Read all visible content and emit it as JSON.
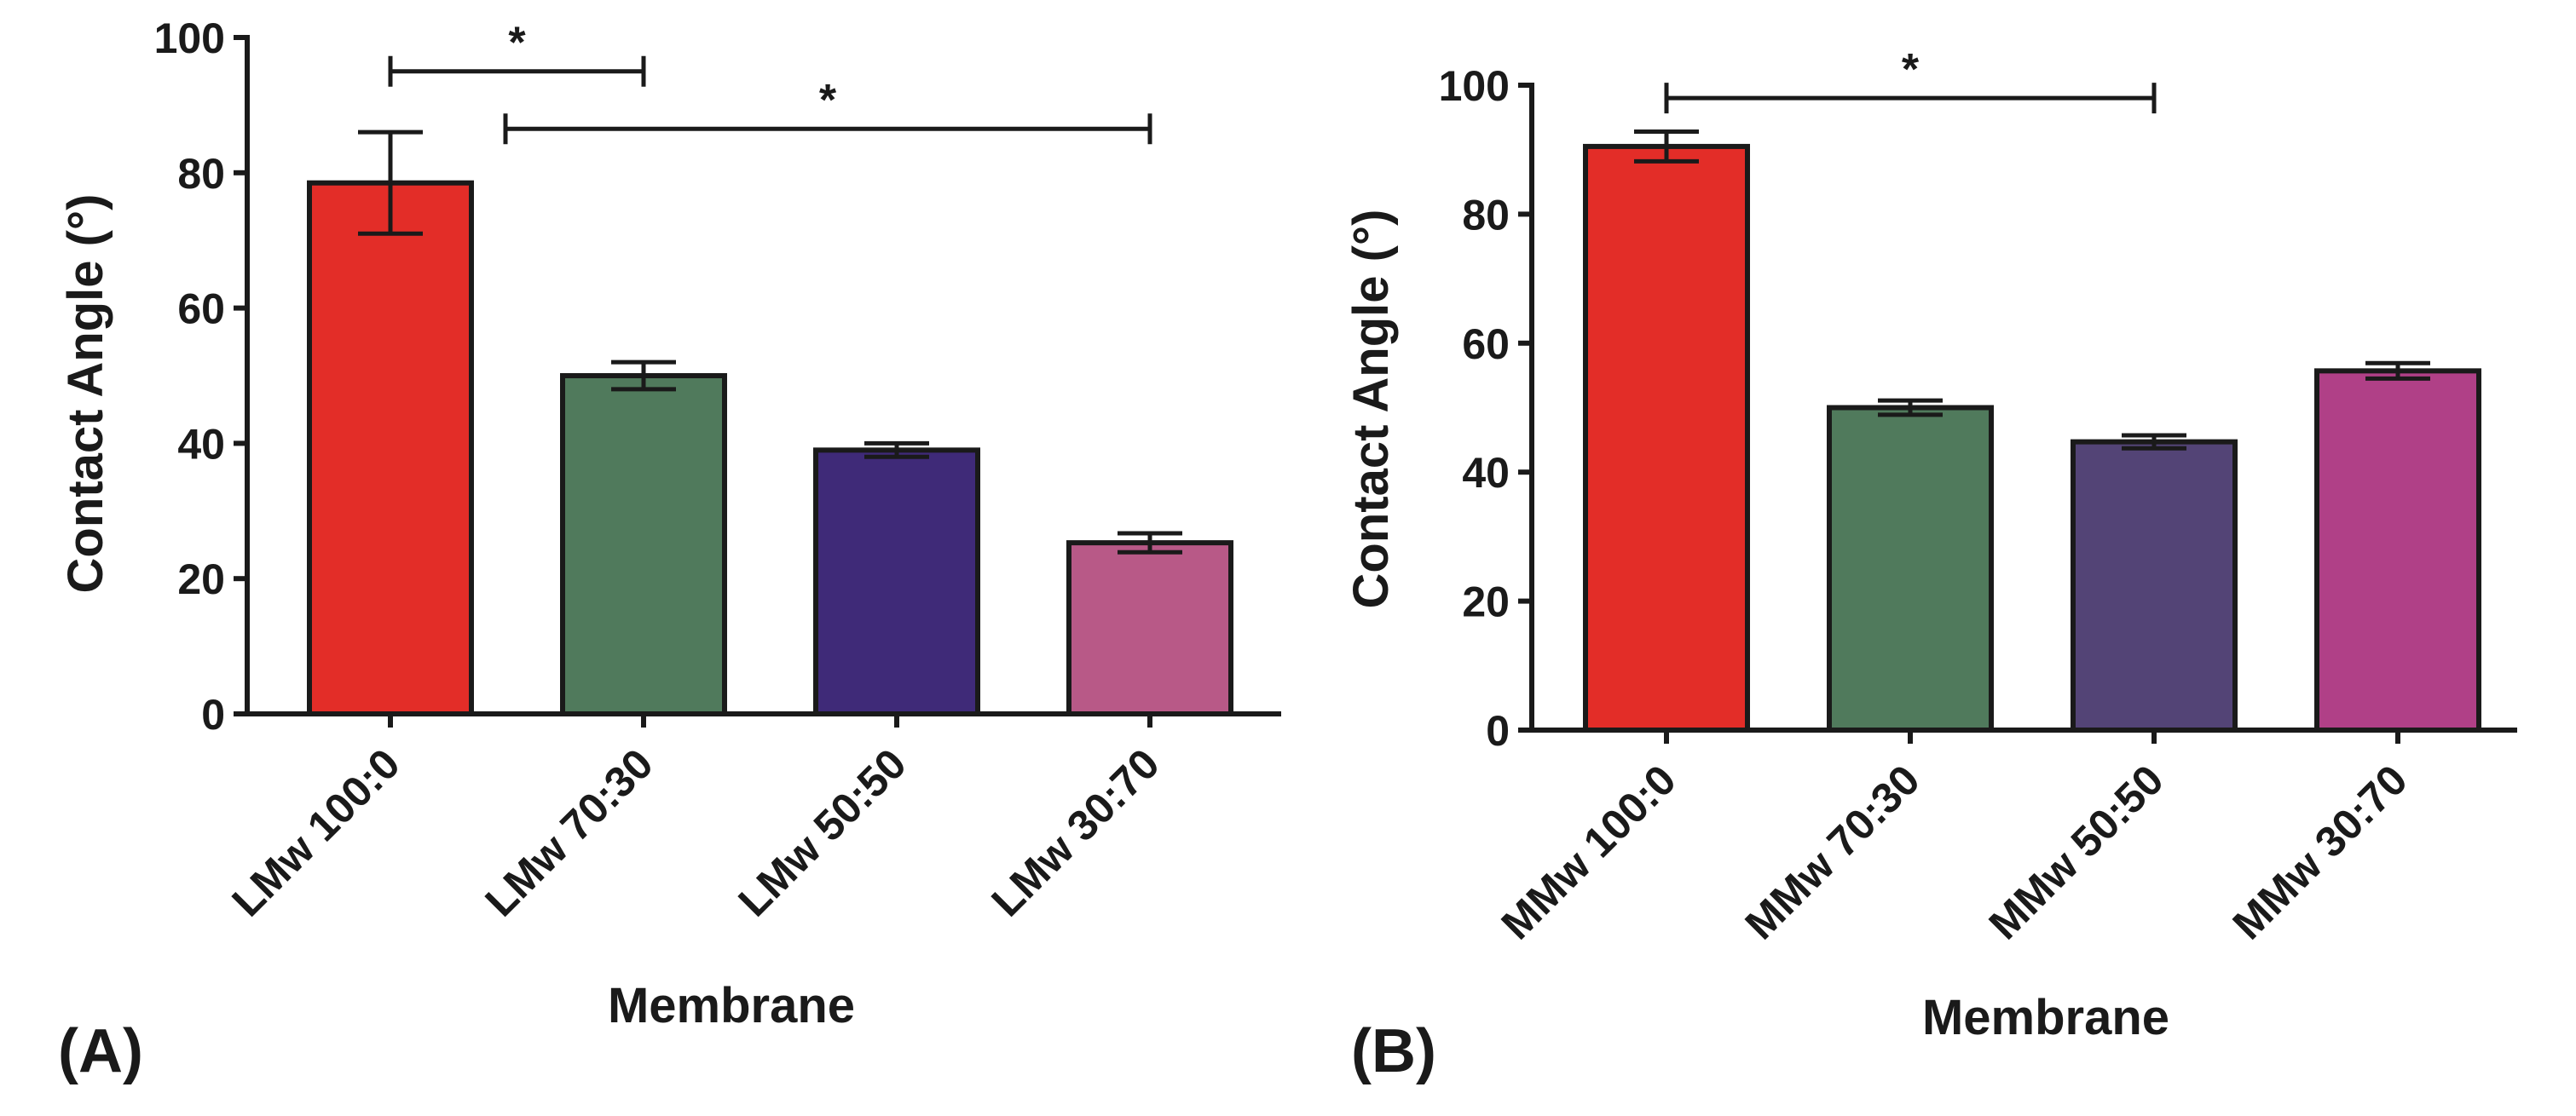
{
  "chart_data": [
    {
      "panel": "(A)",
      "type": "bar",
      "categories": [
        "LMw 100:0",
        "LMw 70:30",
        "LMw 50:50",
        "LMw 30:70"
      ],
      "values": [
        78.5,
        50,
        39,
        25.3
      ],
      "errors": [
        7.5,
        2,
        1,
        1.4
      ],
      "colors": [
        "#e32d28",
        "#507a5c",
        "#3f2a78",
        "#b85987"
      ],
      "xlabel": "Membrane",
      "ylabel": "Contact Angle (°)",
      "ylim": [
        0,
        100
      ],
      "yticks": [
        0,
        20,
        40,
        60,
        80,
        100
      ],
      "significance": [
        {
          "from": 0,
          "to": 1,
          "value": 95,
          "label": "*"
        },
        {
          "from": 0,
          "to": 3,
          "value": 86.5,
          "label": "*"
        }
      ]
    },
    {
      "panel": "(B)",
      "type": "bar",
      "categories": [
        "MMw 100:0",
        "MMw 70:30",
        "MMw 50:50",
        "MMw 30:70"
      ],
      "values": [
        90.5,
        50,
        44.7,
        55.7
      ],
      "errors": [
        2.3,
        1.1,
        1,
        1.2
      ],
      "colors": [
        "#e32d28",
        "#507a5c",
        "#534476",
        "#b04087"
      ],
      "xlabel": "Membrane",
      "ylabel": "Contact Angle (°)",
      "ylim": [
        0,
        100
      ],
      "yticks": [
        0,
        20,
        40,
        60,
        80,
        100
      ],
      "significance": [
        {
          "from": 0,
          "to": 2,
          "value": 98,
          "label": "*"
        }
      ]
    }
  ]
}
